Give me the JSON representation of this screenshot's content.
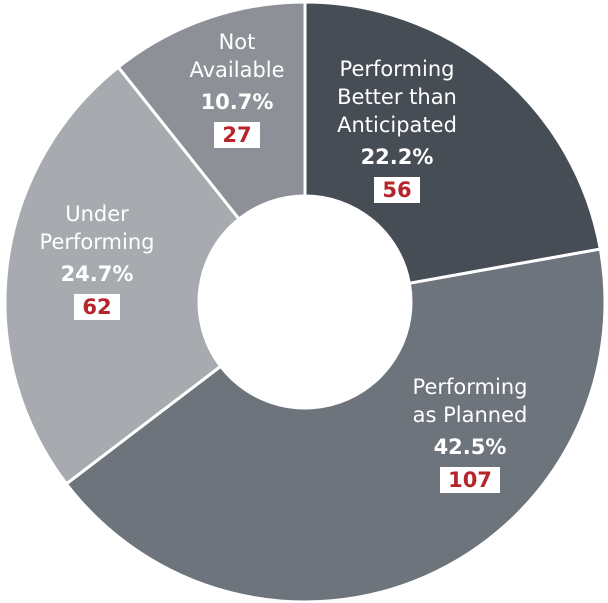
{
  "chart_data": {
    "type": "donut",
    "categories": [
      "Performing Better than Anticipated",
      "Performing as Planned",
      "Under Performing",
      "Not Available"
    ],
    "values": [
      22.2,
      42.5,
      24.7,
      10.7
    ],
    "value_labels": [
      "22.2%",
      "42.5%",
      "24.7%",
      "10.7%"
    ],
    "counts": [
      56,
      107,
      62,
      27
    ],
    "colors": [
      "#474d55",
      "#6e747c",
      "#a7abb0",
      "#8d9197"
    ]
  }
}
